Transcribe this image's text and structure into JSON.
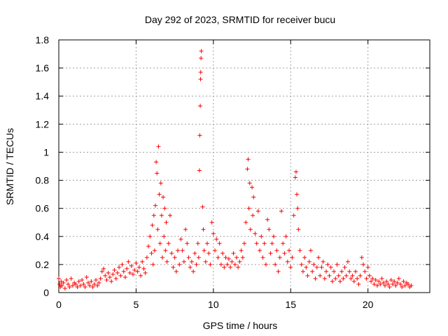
{
  "chart_data": {
    "type": "scatter",
    "title": "Day 292 of 2023, SRMTID for receiver bucu",
    "xlabel": "GPS time / hours",
    "ylabel": "SRMTID / TECUs",
    "xlim": [
      0,
      24
    ],
    "ylim": [
      0,
      1.8
    ],
    "xticks": [
      0,
      5,
      10,
      15,
      20
    ],
    "yticks": [
      0,
      0.2,
      0.4,
      0.6,
      0.8,
      1.0,
      1.2,
      1.4,
      1.6,
      1.8
    ],
    "xtick_labels": [
      "0",
      "5",
      "10",
      "15",
      "20"
    ],
    "ytick_labels": [
      "0",
      "0.2",
      "0.4",
      "0.6",
      "0.8",
      "1",
      "1.2",
      "1.4",
      "1.6",
      "1.8"
    ],
    "grid": true,
    "marker": "+",
    "color": "#ff0000",
    "series": [
      {
        "name": "SRMTID",
        "points": [
          [
            0.0,
            0.1
          ],
          [
            0.05,
            0.06
          ],
          [
            0.1,
            0.04
          ],
          [
            0.15,
            0.08
          ],
          [
            0.2,
            0.05
          ],
          [
            0.3,
            0.07
          ],
          [
            0.4,
            0.03
          ],
          [
            0.5,
            0.09
          ],
          [
            0.6,
            0.06
          ],
          [
            0.7,
            0.04
          ],
          [
            0.8,
            0.1
          ],
          [
            0.9,
            0.05
          ],
          [
            1.0,
            0.07
          ],
          [
            1.1,
            0.06
          ],
          [
            1.2,
            0.04
          ],
          [
            1.3,
            0.08
          ],
          [
            1.4,
            0.05
          ],
          [
            1.5,
            0.09
          ],
          [
            1.6,
            0.06
          ],
          [
            1.7,
            0.04
          ],
          [
            1.8,
            0.11
          ],
          [
            1.9,
            0.07
          ],
          [
            2.0,
            0.05
          ],
          [
            2.1,
            0.08
          ],
          [
            2.2,
            0.04
          ],
          [
            2.3,
            0.06
          ],
          [
            2.4,
            0.09
          ],
          [
            2.5,
            0.05
          ],
          [
            2.6,
            0.07
          ],
          [
            2.7,
            0.1
          ],
          [
            2.8,
            0.15
          ],
          [
            2.9,
            0.17
          ],
          [
            3.0,
            0.12
          ],
          [
            3.1,
            0.09
          ],
          [
            3.2,
            0.14
          ],
          [
            3.3,
            0.11
          ],
          [
            3.4,
            0.08
          ],
          [
            3.5,
            0.13
          ],
          [
            3.6,
            0.16
          ],
          [
            3.7,
            0.1
          ],
          [
            3.8,
            0.14
          ],
          [
            3.9,
            0.18
          ],
          [
            4.0,
            0.12
          ],
          [
            4.1,
            0.2
          ],
          [
            4.2,
            0.15
          ],
          [
            4.3,
            0.11
          ],
          [
            4.4,
            0.17
          ],
          [
            4.5,
            0.22
          ],
          [
            4.6,
            0.14
          ],
          [
            4.7,
            0.19
          ],
          [
            4.8,
            0.13
          ],
          [
            4.9,
            0.16
          ],
          [
            5.0,
            0.21
          ],
          [
            5.1,
            0.15
          ],
          [
            5.2,
            0.18
          ],
          [
            5.3,
            0.12
          ],
          [
            5.4,
            0.22
          ],
          [
            5.5,
            0.17
          ],
          [
            5.6,
            0.14
          ],
          [
            5.7,
            0.25
          ],
          [
            5.8,
            0.33
          ],
          [
            5.9,
            0.4
          ],
          [
            6.0,
            0.28
          ],
          [
            6.05,
            0.48
          ],
          [
            6.1,
            0.2
          ],
          [
            6.15,
            0.55
          ],
          [
            6.2,
            0.3
          ],
          [
            6.25,
            0.62
          ],
          [
            6.3,
            0.93
          ],
          [
            6.35,
            0.85
          ],
          [
            6.4,
            0.45
          ],
          [
            6.45,
            1.04
          ],
          [
            6.5,
            0.7
          ],
          [
            6.55,
            0.35
          ],
          [
            6.6,
            0.78
          ],
          [
            6.65,
            0.55
          ],
          [
            6.7,
            0.25
          ],
          [
            6.75,
            0.68
          ],
          [
            6.8,
            0.4
          ],
          [
            6.85,
            0.6
          ],
          [
            6.9,
            0.3
          ],
          [
            6.95,
            0.5
          ],
          [
            7.0,
            0.22
          ],
          [
            7.1,
            0.35
          ],
          [
            7.2,
            0.55
          ],
          [
            7.3,
            0.28
          ],
          [
            7.4,
            0.18
          ],
          [
            7.5,
            0.25
          ],
          [
            7.6,
            0.15
          ],
          [
            7.7,
            0.3
          ],
          [
            7.8,
            0.2
          ],
          [
            7.9,
            0.38
          ],
          [
            8.0,
            0.3
          ],
          [
            8.1,
            0.22
          ],
          [
            8.2,
            0.45
          ],
          [
            8.3,
            0.35
          ],
          [
            8.4,
            0.25
          ],
          [
            8.5,
            0.18
          ],
          [
            8.6,
            0.22
          ],
          [
            8.7,
            0.15
          ],
          [
            8.8,
            0.28
          ],
          [
            8.9,
            0.2
          ],
          [
            9.0,
            0.35
          ],
          [
            9.05,
            0.25
          ],
          [
            9.1,
            0.87
          ],
          [
            9.12,
            1.12
          ],
          [
            9.15,
            1.33
          ],
          [
            9.17,
            1.52
          ],
          [
            9.18,
            1.57
          ],
          [
            9.2,
            1.67
          ],
          [
            9.22,
            1.72
          ],
          [
            9.3,
            0.61
          ],
          [
            9.35,
            0.45
          ],
          [
            9.4,
            0.3
          ],
          [
            9.5,
            0.22
          ],
          [
            9.6,
            0.35
          ],
          [
            9.7,
            0.28
          ],
          [
            9.8,
            0.2
          ],
          [
            9.9,
            0.5
          ],
          [
            10.0,
            0.42
          ],
          [
            10.1,
            0.3
          ],
          [
            10.2,
            0.38
          ],
          [
            10.3,
            0.25
          ],
          [
            10.4,
            0.35
          ],
          [
            10.5,
            0.2
          ],
          [
            10.6,
            0.28
          ],
          [
            10.7,
            0.18
          ],
          [
            10.8,
            0.25
          ],
          [
            10.9,
            0.2
          ],
          [
            11.0,
            0.24
          ],
          [
            11.1,
            0.18
          ],
          [
            11.2,
            0.22
          ],
          [
            11.3,
            0.28
          ],
          [
            11.4,
            0.2
          ],
          [
            11.5,
            0.25
          ],
          [
            11.6,
            0.18
          ],
          [
            11.7,
            0.22
          ],
          [
            11.8,
            0.3
          ],
          [
            11.9,
            0.25
          ],
          [
            12.0,
            0.35
          ],
          [
            12.1,
            0.5
          ],
          [
            12.2,
            0.88
          ],
          [
            12.25,
            0.95
          ],
          [
            12.3,
            0.6
          ],
          [
            12.35,
            0.78
          ],
          [
            12.4,
            0.45
          ],
          [
            12.5,
            0.75
          ],
          [
            12.55,
            0.55
          ],
          [
            12.6,
            0.68
          ],
          [
            12.7,
            0.42
          ],
          [
            12.8,
            0.35
          ],
          [
            12.9,
            0.58
          ],
          [
            13.0,
            0.3
          ],
          [
            13.1,
            0.4
          ],
          [
            13.2,
            0.25
          ],
          [
            13.3,
            0.35
          ],
          [
            13.4,
            0.2
          ],
          [
            13.5,
            0.52
          ],
          [
            13.6,
            0.45
          ],
          [
            13.7,
            0.28
          ],
          [
            13.8,
            0.35
          ],
          [
            13.9,
            0.4
          ],
          [
            14.0,
            0.2
          ],
          [
            14.1,
            0.3
          ],
          [
            14.2,
            0.15
          ],
          [
            14.3,
            0.25
          ],
          [
            14.4,
            0.58
          ],
          [
            14.5,
            0.35
          ],
          [
            14.6,
            0.28
          ],
          [
            14.7,
            0.4
          ],
          [
            14.8,
            0.22
          ],
          [
            14.9,
            0.3
          ],
          [
            15.0,
            0.18
          ],
          [
            15.1,
            0.25
          ],
          [
            15.2,
            0.55
          ],
          [
            15.3,
            0.82
          ],
          [
            15.35,
            0.86
          ],
          [
            15.4,
            0.7
          ],
          [
            15.45,
            0.6
          ],
          [
            15.5,
            0.45
          ],
          [
            15.6,
            0.3
          ],
          [
            15.7,
            0.2
          ],
          [
            15.8,
            0.15
          ],
          [
            15.9,
            0.25
          ],
          [
            16.0,
            0.18
          ],
          [
            16.1,
            0.12
          ],
          [
            16.2,
            0.22
          ],
          [
            16.3,
            0.3
          ],
          [
            16.4,
            0.15
          ],
          [
            16.5,
            0.2
          ],
          [
            16.6,
            0.1
          ],
          [
            16.7,
            0.18
          ],
          [
            16.8,
            0.25
          ],
          [
            16.9,
            0.12
          ],
          [
            17.0,
            0.18
          ],
          [
            17.1,
            0.22
          ],
          [
            17.2,
            0.1
          ],
          [
            17.3,
            0.15
          ],
          [
            17.4,
            0.2
          ],
          [
            17.5,
            0.12
          ],
          [
            17.6,
            0.18
          ],
          [
            17.7,
            0.08
          ],
          [
            17.8,
            0.15
          ],
          [
            17.9,
            0.1
          ],
          [
            18.0,
            0.2
          ],
          [
            18.1,
            0.12
          ],
          [
            18.2,
            0.08
          ],
          [
            18.3,
            0.15
          ],
          [
            18.4,
            0.1
          ],
          [
            18.5,
            0.18
          ],
          [
            18.6,
            0.12
          ],
          [
            18.7,
            0.22
          ],
          [
            18.8,
            0.15
          ],
          [
            18.9,
            0.1
          ],
          [
            19.0,
            0.12
          ],
          [
            19.1,
            0.08
          ],
          [
            19.2,
            0.15
          ],
          [
            19.3,
            0.1
          ],
          [
            19.4,
            0.06
          ],
          [
            19.5,
            0.12
          ],
          [
            19.6,
            0.25
          ],
          [
            19.7,
            0.2
          ],
          [
            19.8,
            0.15
          ],
          [
            19.9,
            0.1
          ],
          [
            20.0,
            0.18
          ],
          [
            20.1,
            0.12
          ],
          [
            20.2,
            0.08
          ],
          [
            20.3,
            0.1
          ],
          [
            20.4,
            0.06
          ],
          [
            20.5,
            0.09
          ],
          [
            20.6,
            0.05
          ],
          [
            20.7,
            0.08
          ],
          [
            20.8,
            0.06
          ],
          [
            20.9,
            0.1
          ],
          [
            21.0,
            0.07
          ],
          [
            21.1,
            0.05
          ],
          [
            21.2,
            0.08
          ],
          [
            21.3,
            0.06
          ],
          [
            21.4,
            0.04
          ],
          [
            21.5,
            0.09
          ],
          [
            21.6,
            0.06
          ],
          [
            21.7,
            0.08
          ],
          [
            21.8,
            0.05
          ],
          [
            21.9,
            0.07
          ],
          [
            22.0,
            0.1
          ],
          [
            22.1,
            0.06
          ],
          [
            22.2,
            0.04
          ],
          [
            22.3,
            0.08
          ],
          [
            22.4,
            0.05
          ],
          [
            22.5,
            0.07
          ],
          [
            22.6,
            0.06
          ],
          [
            22.7,
            0.04
          ],
          [
            22.8,
            0.05
          ]
        ]
      }
    ]
  }
}
